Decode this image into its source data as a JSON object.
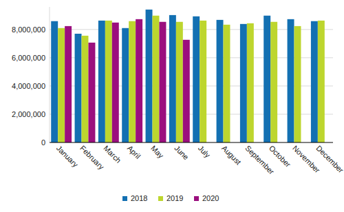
{
  "chart_data": {
    "type": "bar",
    "categories": [
      "January",
      "February",
      "March",
      "April",
      "May",
      "June",
      "July",
      "August",
      "September",
      "October",
      "November",
      "December"
    ],
    "series": [
      {
        "name": "2018",
        "color": "#1370b2",
        "values": [
          8590000,
          7700000,
          8630000,
          8100000,
          9410000,
          9020000,
          8930000,
          8680000,
          8390000,
          8980000,
          8730000,
          8590000
        ]
      },
      {
        "name": "2019",
        "color": "#bdd62e",
        "values": [
          8100000,
          7560000,
          8630000,
          8590000,
          8980000,
          8540000,
          8630000,
          8340000,
          8440000,
          8540000,
          8240000,
          8630000
        ]
      },
      {
        "name": "2020",
        "color": "#9b0f7e",
        "values": [
          8240000,
          7070000,
          8490000,
          8730000,
          8540000,
          7270000,
          null,
          null,
          null,
          null,
          null,
          null
        ]
      }
    ],
    "ylim": [
      0,
      9600000
    ],
    "yticks": [
      0,
      {
        "value": 2000000,
        "label": "2,000,000"
      },
      {
        "value": 4000000,
        "label": "4,000,000"
      },
      {
        "value": 6000000,
        "label": "6,000,000"
      },
      {
        "value": 8000000,
        "label": "8,000,000"
      }
    ],
    "grid": true,
    "legend": "bottom"
  }
}
